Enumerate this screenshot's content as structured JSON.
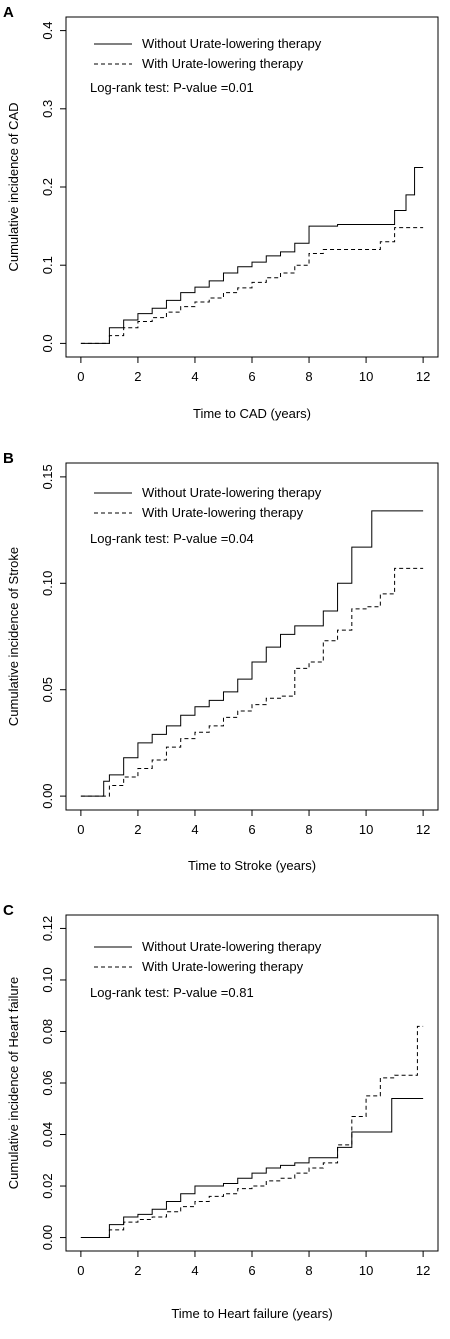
{
  "chart_data": [
    {
      "type": "line",
      "panel_label": "A",
      "xlabel": "Time to CAD (years)",
      "ylabel": "Cumulative incidence of CAD",
      "annotation": "Log-rank test: P-value =0.01",
      "xlim": [
        0,
        12
      ],
      "ylim": [
        0,
        0.4
      ],
      "xticks": [
        0,
        2,
        4,
        6,
        8,
        10,
        12
      ],
      "xtick_labels": [
        "0",
        "2",
        "4",
        "6",
        "8",
        "10",
        "12"
      ],
      "yticks": [
        0,
        0.1,
        0.2,
        0.3,
        0.4
      ],
      "ytick_labels": [
        "0.0",
        "0.1",
        "0.2",
        "0.3",
        "0.4"
      ],
      "legend_position": "top-left",
      "series": [
        {
          "name": "Without Urate-lowering therapy",
          "line_style": "solid",
          "x": [
            0,
            0.5,
            1,
            1.5,
            2,
            2.5,
            3,
            3.5,
            4,
            4.5,
            5,
            5.5,
            6,
            6.5,
            7,
            7.5,
            8,
            9,
            10,
            10.5,
            11,
            11.4,
            11.7,
            12
          ],
          "y": [
            0,
            0,
            0.02,
            0.03,
            0.038,
            0.045,
            0.055,
            0.065,
            0.072,
            0.08,
            0.09,
            0.098,
            0.104,
            0.112,
            0.117,
            0.128,
            0.15,
            0.152,
            0.152,
            0.152,
            0.17,
            0.19,
            0.225,
            0.225
          ]
        },
        {
          "name": "With Urate-lowering therapy",
          "line_style": "dashed",
          "x": [
            0,
            0.5,
            1,
            1.5,
            2,
            2.5,
            3,
            3.5,
            4,
            4.5,
            5,
            5.5,
            6,
            6.5,
            7,
            7.5,
            8,
            8.5,
            9,
            10,
            10.5,
            11,
            12
          ],
          "y": [
            0,
            0,
            0.01,
            0.02,
            0.028,
            0.033,
            0.04,
            0.047,
            0.053,
            0.058,
            0.065,
            0.071,
            0.078,
            0.084,
            0.09,
            0.1,
            0.115,
            0.12,
            0.12,
            0.12,
            0.13,
            0.148,
            0.148
          ]
        }
      ]
    },
    {
      "type": "line",
      "panel_label": "B",
      "xlabel": "Time to Stroke (years)",
      "ylabel": "Cumulative incidence of Stroke",
      "annotation": "Log-rank test: P-value =0.04",
      "xlim": [
        0,
        12
      ],
      "ylim": [
        0,
        0.15
      ],
      "xticks": [
        0,
        2,
        4,
        6,
        8,
        10,
        12
      ],
      "xtick_labels": [
        "0",
        "2",
        "4",
        "6",
        "8",
        "10",
        "12"
      ],
      "yticks": [
        0,
        0.05,
        0.1,
        0.15
      ],
      "ytick_labels": [
        "0.00",
        "0.05",
        "0.10",
        "0.15"
      ],
      "legend_position": "top-left",
      "series": [
        {
          "name": "Without Urate-lowering therapy",
          "line_style": "solid",
          "x": [
            0,
            0.4,
            0.8,
            1,
            1.5,
            2,
            2.5,
            3,
            3.5,
            4,
            4.5,
            5,
            5.5,
            6,
            6.5,
            7,
            7.5,
            8,
            8.5,
            9,
            9.5,
            10,
            10.2,
            12
          ],
          "y": [
            0,
            0,
            0.007,
            0.01,
            0.018,
            0.025,
            0.029,
            0.033,
            0.038,
            0.042,
            0.045,
            0.049,
            0.055,
            0.063,
            0.07,
            0.076,
            0.08,
            0.08,
            0.087,
            0.1,
            0.117,
            0.117,
            0.134,
            0.134
          ]
        },
        {
          "name": "With Urate-lowering therapy",
          "line_style": "dashed",
          "x": [
            0,
            0.5,
            1,
            1.5,
            2,
            2.5,
            3,
            3.5,
            4,
            4.5,
            5,
            5.5,
            6,
            6.5,
            7,
            7.5,
            8,
            8.5,
            9,
            9.5,
            10,
            10.5,
            11,
            12
          ],
          "y": [
            0,
            0,
            0.005,
            0.009,
            0.013,
            0.017,
            0.023,
            0.027,
            0.03,
            0.033,
            0.037,
            0.04,
            0.043,
            0.046,
            0.047,
            0.06,
            0.063,
            0.073,
            0.078,
            0.088,
            0.089,
            0.095,
            0.107,
            0.107
          ]
        }
      ]
    },
    {
      "type": "line",
      "panel_label": "C",
      "xlabel": "Time to Heart failure (years)",
      "ylabel": "Cumulative incidence of Heart failure",
      "annotation": "Log-rank test: P-value =0.81",
      "xlim": [
        0,
        12
      ],
      "ylim": [
        0,
        0.12
      ],
      "xticks": [
        0,
        2,
        4,
        6,
        8,
        10,
        12
      ],
      "xtick_labels": [
        "0",
        "2",
        "4",
        "6",
        "8",
        "10",
        "12"
      ],
      "yticks": [
        0,
        0.02,
        0.04,
        0.06,
        0.08,
        0.1,
        0.12
      ],
      "ytick_labels": [
        "0.00",
        "0.02",
        "0.04",
        "0.06",
        "0.08",
        "0.10",
        "0.12"
      ],
      "legend_position": "top-left",
      "series": [
        {
          "name": "Without Urate-lowering therapy",
          "line_style": "solid",
          "x": [
            0,
            0.5,
            1,
            1.5,
            2,
            2.5,
            3,
            3.5,
            4,
            4.5,
            5,
            5.5,
            6,
            6.5,
            7,
            7.5,
            8,
            8.5,
            9,
            9.5,
            10,
            10.9,
            12
          ],
          "y": [
            0,
            0,
            0.005,
            0.008,
            0.009,
            0.011,
            0.014,
            0.017,
            0.02,
            0.02,
            0.021,
            0.023,
            0.025,
            0.027,
            0.028,
            0.029,
            0.031,
            0.031,
            0.035,
            0.041,
            0.041,
            0.054,
            0.054
          ]
        },
        {
          "name": "With Urate-lowering therapy",
          "line_style": "dashed",
          "x": [
            0,
            0.5,
            1,
            1.5,
            2,
            2.5,
            3,
            3.5,
            4,
            4.5,
            5,
            5.5,
            6,
            6.5,
            7,
            7.5,
            8,
            8.5,
            9,
            9.5,
            10,
            10.5,
            11,
            11.8,
            12
          ],
          "y": [
            0,
            0,
            0.003,
            0.006,
            0.007,
            0.008,
            0.01,
            0.012,
            0.014,
            0.016,
            0.017,
            0.019,
            0.02,
            0.022,
            0.023,
            0.025,
            0.027,
            0.029,
            0.036,
            0.047,
            0.055,
            0.062,
            0.063,
            0.082,
            0.082
          ]
        }
      ]
    }
  ]
}
